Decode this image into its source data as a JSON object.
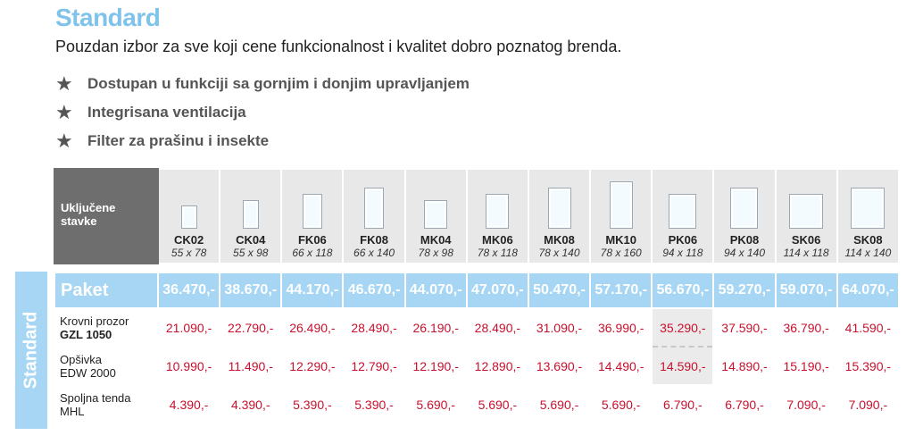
{
  "title": "Standard",
  "subtitle": "Pouzdan izbor za sve koji cene funkcionalnost i kvalitet dobro poznatog brenda.",
  "features": [
    "Dostupan u funkciji sa gornjim i donjim upravljanjem",
    "Integrisana ventilacija",
    "Filter za prašinu i insekte"
  ],
  "side_tab": "Standard",
  "table": {
    "corner_label": "Uključene stavke",
    "sizes": [
      {
        "code": "CK02",
        "dim": "55 x 78",
        "w": 55,
        "h": 78
      },
      {
        "code": "CK04",
        "dim": "55 x 98",
        "w": 55,
        "h": 98
      },
      {
        "code": "FK06",
        "dim": "66 x 118",
        "w": 66,
        "h": 118
      },
      {
        "code": "FK08",
        "dim": "66 x 140",
        "w": 66,
        "h": 140
      },
      {
        "code": "MK04",
        "dim": "78 x 98",
        "w": 78,
        "h": 98
      },
      {
        "code": "MK06",
        "dim": "78 x 118",
        "w": 78,
        "h": 118
      },
      {
        "code": "MK08",
        "dim": "78 x 140",
        "w": 78,
        "h": 140
      },
      {
        "code": "MK10",
        "dim": "78 x 160",
        "w": 78,
        "h": 160
      },
      {
        "code": "PK06",
        "dim": "94 x 118",
        "w": 94,
        "h": 118
      },
      {
        "code": "PK08",
        "dim": "94 x 140",
        "w": 94,
        "h": 140
      },
      {
        "code": "SK06",
        "dim": "114 x 118",
        "w": 114,
        "h": 118
      },
      {
        "code": "SK08",
        "dim": "114 x 140",
        "w": 114,
        "h": 140
      }
    ],
    "paket": {
      "label": "Paket",
      "values": [
        "36.470,-",
        "38.670,-",
        "44.170,-",
        "46.670,-",
        "44.070,-",
        "47.070,-",
        "50.470,-",
        "57.170,-",
        "56.670,-",
        "59.270,-",
        "59.070,-",
        "64.070,-"
      ]
    },
    "rows": [
      {
        "line1": "Krovni prozor",
        "line2": "GZL 1050",
        "line2_bold": true,
        "values": [
          "21.090,-",
          "22.790,-",
          "26.490,-",
          "28.490,-",
          "26.190,-",
          "28.490,-",
          "31.090,-",
          "36.990,-",
          "35.290,-",
          "37.590,-",
          "36.790,-",
          "41.590,-"
        ]
      },
      {
        "line1": "Opšivka",
        "line2": "EDW 2000",
        "line2_bold": false,
        "values": [
          "10.990,-",
          "11.490,-",
          "12.290,-",
          "12.790,-",
          "12.190,-",
          "12.890,-",
          "13.690,-",
          "14.490,-",
          "14.590,-",
          "14.890,-",
          "15.190,-",
          "15.390,-"
        ]
      },
      {
        "line1": "Spoljna tenda",
        "line2": "MHL",
        "line2_bold": false,
        "values": [
          "4.390,-",
          "4.390,-",
          "5.390,-",
          "5.390,-",
          "5.690,-",
          "5.690,-",
          "5.690,-",
          "5.690,-",
          "6.790,-",
          "6.790,-",
          "7.090,-",
          "7.090,-"
        ]
      }
    ],
    "highlight_rows": [
      0,
      1
    ],
    "highlight_col": 8
  }
}
